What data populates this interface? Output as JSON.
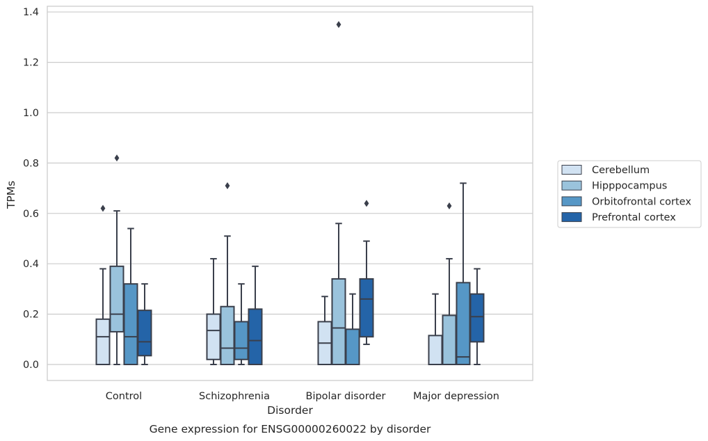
{
  "chart_data": {
    "type": "box",
    "title": "",
    "caption": "Gene expression for ENSG00000260022 by disorder",
    "xlabel": "Disorder",
    "ylabel": "TPMs",
    "ylim": [
      -0.065,
      1.42
    ],
    "yticks": [
      0.0,
      0.2,
      0.4,
      0.6,
      0.8,
      1.0,
      1.2,
      1.4
    ],
    "ytick_labels": [
      "0.0",
      "0.2",
      "0.4",
      "0.6",
      "0.8",
      "1.0",
      "1.2",
      "1.4"
    ],
    "grid": "horizontal",
    "legend_position": "right",
    "categories": [
      "Control",
      "Schizophrenia",
      "Bipolar disorder",
      "Major depression"
    ],
    "series": [
      {
        "name": "Cerebellum",
        "color": "#d1e2f2",
        "boxes": [
          {
            "whislo": 0.0,
            "q1": 0.0,
            "med": 0.11,
            "q3": 0.18,
            "whishi": 0.38,
            "fliers": [
              0.62
            ]
          },
          {
            "whislo": 0.0,
            "q1": 0.02,
            "med": 0.135,
            "q3": 0.2,
            "whishi": 0.42,
            "fliers": []
          },
          {
            "whislo": 0.0,
            "q1": 0.0,
            "med": 0.085,
            "q3": 0.17,
            "whishi": 0.27,
            "fliers": []
          },
          {
            "whislo": 0.0,
            "q1": 0.0,
            "med": 0.0,
            "q3": 0.115,
            "whishi": 0.28,
            "fliers": []
          }
        ]
      },
      {
        "name": "Hipppocampus",
        "color": "#9ac3dc",
        "boxes": [
          {
            "whislo": 0.0,
            "q1": 0.13,
            "med": 0.2,
            "q3": 0.39,
            "whishi": 0.61,
            "fliers": [
              0.82
            ]
          },
          {
            "whislo": 0.0,
            "q1": 0.0,
            "med": 0.065,
            "q3": 0.23,
            "whishi": 0.51,
            "fliers": [
              0.71
            ]
          },
          {
            "whislo": 0.0,
            "q1": 0.0,
            "med": 0.145,
            "q3": 0.34,
            "whishi": 0.56,
            "fliers": [
              1.35
            ]
          },
          {
            "whislo": 0.0,
            "q1": 0.0,
            "med": 0.0,
            "q3": 0.195,
            "whishi": 0.42,
            "fliers": [
              0.63
            ]
          }
        ]
      },
      {
        "name": "Orbitofrontal cortex",
        "color": "#5697c6",
        "boxes": [
          {
            "whislo": 0.0,
            "q1": 0.0,
            "med": 0.11,
            "q3": 0.32,
            "whishi": 0.54,
            "fliers": []
          },
          {
            "whislo": 0.0,
            "q1": 0.02,
            "med": 0.065,
            "q3": 0.17,
            "whishi": 0.32,
            "fliers": []
          },
          {
            "whislo": 0.0,
            "q1": 0.0,
            "med": 0.0,
            "q3": 0.14,
            "whishi": 0.28,
            "fliers": []
          },
          {
            "whislo": 0.0,
            "q1": 0.0,
            "med": 0.03,
            "q3": 0.325,
            "whishi": 0.72,
            "fliers": []
          }
        ]
      },
      {
        "name": "Prefrontal cortex",
        "color": "#2464a8",
        "boxes": [
          {
            "whislo": 0.0,
            "q1": 0.035,
            "med": 0.09,
            "q3": 0.215,
            "whishi": 0.32,
            "fliers": []
          },
          {
            "whislo": 0.0,
            "q1": 0.0,
            "med": 0.095,
            "q3": 0.22,
            "whishi": 0.39,
            "fliers": []
          },
          {
            "whislo": 0.08,
            "q1": 0.11,
            "med": 0.26,
            "q3": 0.34,
            "whishi": 0.49,
            "fliers": [
              0.64
            ]
          },
          {
            "whislo": 0.0,
            "q1": 0.09,
            "med": 0.19,
            "q3": 0.28,
            "whishi": 0.38,
            "fliers": []
          }
        ]
      }
    ]
  }
}
